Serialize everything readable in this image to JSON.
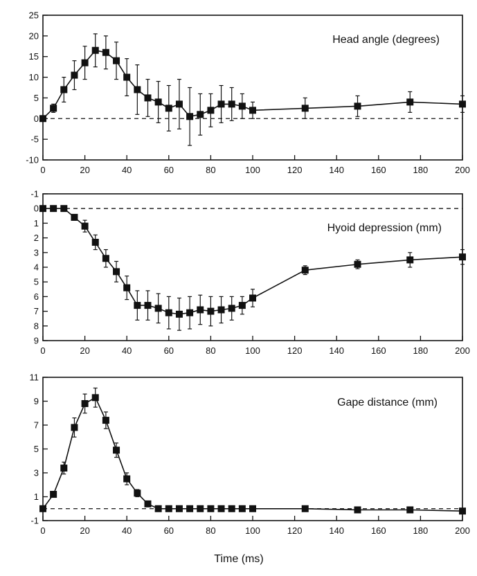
{
  "chart_data": [
    {
      "type": "line",
      "title": "Head angle (degrees)",
      "xlabel": "",
      "ylabel": "",
      "xlim": [
        0,
        200
      ],
      "ylim": [
        -10,
        25
      ],
      "y_inverted": false,
      "xticks": [
        "0",
        "20",
        "40",
        "60",
        "80",
        "100",
        "120",
        "140",
        "160",
        "180",
        "200"
      ],
      "yticks": [
        "25",
        "20",
        "15",
        "10",
        "5",
        "0",
        "-5",
        "-10"
      ],
      "ytick_values": [
        25,
        20,
        15,
        10,
        5,
        0,
        -5,
        -10
      ],
      "baseline": 0,
      "grid": false,
      "x": [
        0,
        5,
        10,
        15,
        20,
        25,
        30,
        35,
        40,
        45,
        50,
        55,
        60,
        65,
        70,
        75,
        80,
        85,
        90,
        95,
        100,
        125,
        150,
        175,
        200
      ],
      "values": [
        0,
        2.5,
        7,
        10.5,
        13.5,
        16.5,
        16,
        14,
        10,
        7,
        5,
        4,
        2.5,
        3.5,
        0.5,
        1,
        2,
        3.5,
        3.5,
        3,
        2,
        2.5,
        3,
        4,
        3.5
      ],
      "errors": [
        0,
        1,
        3,
        3.5,
        4,
        4,
        4,
        4.5,
        4.5,
        6,
        4.5,
        5,
        5.5,
        6,
        7,
        5,
        4,
        4.5,
        4,
        3,
        2,
        2.5,
        2.5,
        2.5,
        2
      ]
    },
    {
      "type": "line",
      "title": "Hyoid depression (mm)",
      "xlabel": "",
      "ylabel": "",
      "xlim": [
        0,
        200
      ],
      "ylim": [
        -1,
        9
      ],
      "y_inverted": true,
      "xticks": [
        "0",
        "20",
        "40",
        "60",
        "80",
        "100",
        "120",
        "140",
        "160",
        "180",
        "200"
      ],
      "yticks": [
        "-1",
        "0",
        "1",
        "2",
        "3",
        "4",
        "5",
        "6",
        "7",
        "8",
        "9"
      ],
      "ytick_values": [
        -1,
        0,
        1,
        2,
        3,
        4,
        5,
        6,
        7,
        8,
        9
      ],
      "baseline": 0,
      "grid": false,
      "x": [
        0,
        5,
        10,
        15,
        20,
        25,
        30,
        35,
        40,
        45,
        50,
        55,
        60,
        65,
        70,
        75,
        80,
        85,
        90,
        95,
        100,
        125,
        150,
        175,
        200
      ],
      "values": [
        0,
        0,
        0,
        0.6,
        1.2,
        2.3,
        3.4,
        4.3,
        5.4,
        6.6,
        6.6,
        6.8,
        7.1,
        7.2,
        7.1,
        6.9,
        7,
        6.9,
        6.8,
        6.6,
        6.1,
        4.2,
        3.8,
        3.5,
        3.3
      ],
      "errors": [
        0,
        0,
        0,
        0.2,
        0.4,
        0.5,
        0.6,
        0.7,
        0.8,
        1,
        1,
        1,
        1.1,
        1.1,
        1.1,
        1,
        1,
        0.9,
        0.8,
        0.6,
        0.6,
        0.3,
        0.3,
        0.5,
        0.5
      ]
    },
    {
      "type": "line",
      "title": "Gape distance (mm)",
      "xlabel": "Time (ms)",
      "ylabel": "",
      "xlim": [
        0,
        200
      ],
      "ylim": [
        -1,
        11
      ],
      "y_inverted": false,
      "xticks": [
        "0",
        "20",
        "40",
        "60",
        "80",
        "100",
        "120",
        "140",
        "160",
        "180",
        "200"
      ],
      "yticks": [
        "11",
        "9",
        "7",
        "5",
        "3",
        "1",
        "-1"
      ],
      "ytick_values": [
        11,
        9,
        7,
        5,
        3,
        1,
        -1
      ],
      "baseline": 0,
      "grid": false,
      "x": [
        0,
        5,
        10,
        15,
        20,
        25,
        30,
        35,
        40,
        45,
        50,
        55,
        60,
        65,
        70,
        75,
        80,
        85,
        90,
        95,
        100,
        125,
        150,
        175,
        200
      ],
      "values": [
        0,
        1.2,
        3.4,
        6.8,
        8.8,
        9.3,
        7.4,
        4.9,
        2.5,
        1.3,
        0.4,
        0,
        0,
        0,
        0,
        0,
        0,
        0,
        0,
        0,
        0,
        0,
        -0.1,
        -0.1,
        -0.2
      ],
      "errors": [
        0,
        0.2,
        0.5,
        0.8,
        0.8,
        0.8,
        0.7,
        0.6,
        0.5,
        0.3,
        0.1,
        0,
        0,
        0,
        0,
        0,
        0,
        0,
        0,
        0,
        0,
        0,
        0,
        0,
        0
      ]
    }
  ]
}
